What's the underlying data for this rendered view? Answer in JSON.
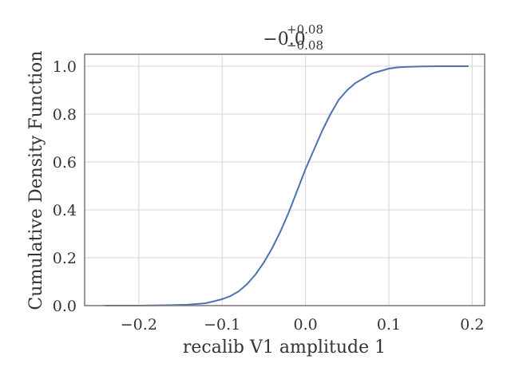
{
  "chart_data": {
    "type": "line",
    "title": {
      "main": "−0.0",
      "sup": "+0.08",
      "sub": "−0.08"
    },
    "xlabel": "recalib V1 amplitude 1",
    "ylabel": "Cumulative Density Function",
    "xlim": [
      -0.265,
      0.215
    ],
    "ylim": [
      0.0,
      1.05
    ],
    "x_ticks": [
      -0.2,
      -0.1,
      0.0,
      0.1,
      0.2
    ],
    "x_tick_labels": [
      "−0.2",
      "−0.1",
      "0.0",
      "0.1",
      "0.2"
    ],
    "y_ticks": [
      0.0,
      0.2,
      0.4,
      0.6,
      0.8,
      1.0
    ],
    "y_tick_labels": [
      "0.0",
      "0.2",
      "0.4",
      "0.6",
      "0.8",
      "1.0"
    ],
    "grid": true,
    "line_color": "#4c72b0",
    "series": [
      {
        "x": [
          -0.24,
          -0.2,
          -0.16,
          -0.14,
          -0.12,
          -0.11,
          -0.1,
          -0.09,
          -0.08,
          -0.07,
          -0.06,
          -0.05,
          -0.04,
          -0.03,
          -0.02,
          -0.01,
          0.0,
          0.01,
          0.02,
          0.03,
          0.04,
          0.05,
          0.06,
          0.07,
          0.08,
          0.09,
          0.1,
          0.11,
          0.12,
          0.14,
          0.16,
          0.195
        ],
        "y": [
          0.0,
          0.0,
          0.002,
          0.004,
          0.01,
          0.018,
          0.027,
          0.04,
          0.06,
          0.09,
          0.13,
          0.18,
          0.24,
          0.31,
          0.39,
          0.48,
          0.57,
          0.65,
          0.73,
          0.8,
          0.86,
          0.9,
          0.93,
          0.95,
          0.97,
          0.98,
          0.99,
          0.995,
          0.997,
          0.999,
          1.0,
          1.0
        ]
      }
    ]
  }
}
